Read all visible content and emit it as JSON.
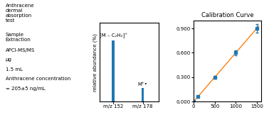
{
  "chart_data": [
    {
      "type": "bar",
      "x": [
        152,
        178
      ],
      "values": [
        0.92,
        0.2
      ],
      "xlim": [
        140,
        192
      ],
      "ylim": [
        0,
        1.18
      ],
      "xticks": [
        {
          "value": 152,
          "label": "m/z 152"
        },
        {
          "value": 178,
          "label": "m/z 178"
        }
      ],
      "yticks": [],
      "tick_labels": "x",
      "ylabel": "relative abundance (%)",
      "annotations": [
        {
          "x": 152,
          "text": "[M – C₂H₂]⁺"
        },
        {
          "x": 178,
          "text": "M⁺•"
        }
      ]
    },
    {
      "type": "scatter",
      "title": "Calibration Curve",
      "series": [
        {
          "type": "line",
          "x": [
            0,
            1550
          ],
          "values": [
            0.0,
            0.93
          ]
        },
        {
          "type": "scatter",
          "marker": "square",
          "x": [
            0,
            100,
            500,
            1000,
            1500
          ],
          "values": [
            0.0,
            0.06,
            0.3,
            0.6,
            0.9
          ],
          "yerr": [
            0.004,
            0.008,
            0.02,
            0.03,
            0.05
          ]
        }
      ],
      "xlim": [
        0,
        1600
      ],
      "ylim": [
        0,
        1.0
      ],
      "xticks": [
        0,
        500,
        1000,
        1500
      ],
      "yticks": [
        {
          "value": 0.0,
          "label": "0.000"
        },
        {
          "value": 0.3,
          "label": "0.300"
        },
        {
          "value": 0.6,
          "label": "0.600"
        },
        {
          "value": 0.9,
          "label": "0.900"
        }
      ],
      "annotations": [
        "Anthracene\ndermal\nabsorption\ntest",
        "Sample\nExtraction",
        "APCI-MS/MS",
        "μg",
        "1.5 mL",
        "Anthracene concentration",
        "= 205±5 ng/mL"
      ]
    }
  ]
}
